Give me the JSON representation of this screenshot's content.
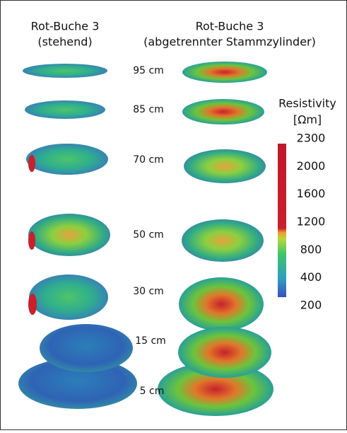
{
  "header": {
    "left": [
      "Rot-Buche 3",
      "(stehend)"
    ],
    "right": [
      "Rot-Buche 3",
      "(abgetrennter Stammzylinder)"
    ]
  },
  "heights": [
    "95 cm",
    "85 cm",
    "70 cm",
    "50 cm",
    "30 cm",
    "15 cm",
    "5 cm"
  ],
  "colorbar": {
    "title": [
      "Resistivity",
      "[Ωm]"
    ],
    "ticks": [
      2300,
      2000,
      1600,
      1200,
      800,
      400,
      200
    ]
  }
}
